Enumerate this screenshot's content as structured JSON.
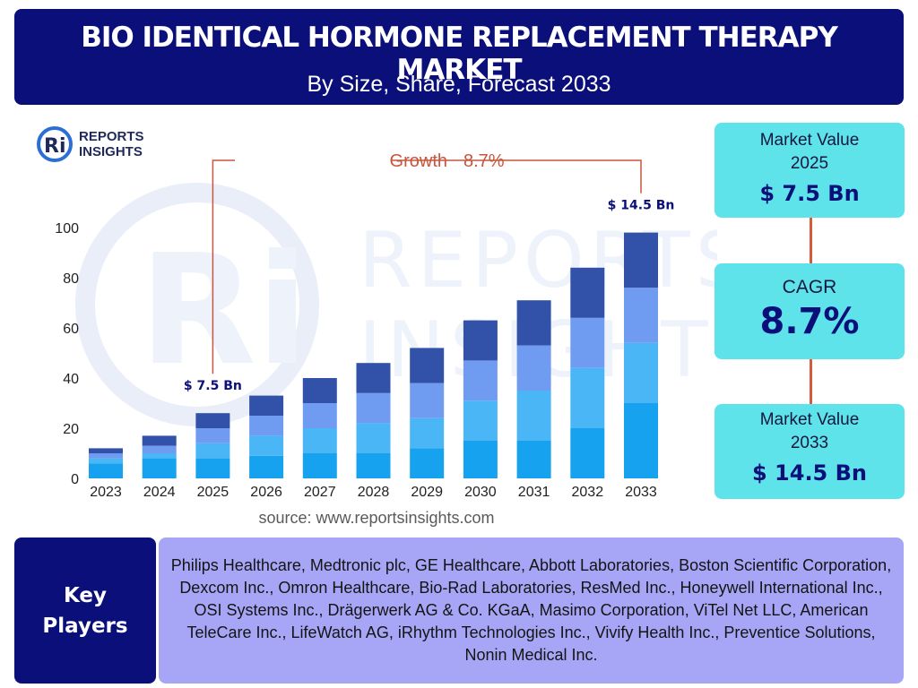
{
  "header": {
    "title": "BIO IDENTICAL HORMONE REPLACEMENT THERAPY MARKET",
    "subtitle": "By Size, Share, Forecast 2033"
  },
  "logo": {
    "line1": "REPORTS",
    "line2": "INSIGHTS"
  },
  "watermark": {
    "line1": "REPORTS",
    "line2": "INSIGHTS"
  },
  "chart_data": {
    "type": "bar",
    "stacked": true,
    "categories": [
      "2023",
      "2024",
      "2025",
      "2026",
      "2027",
      "2028",
      "2029",
      "2030",
      "2031",
      "2032",
      "2033"
    ],
    "series": [
      {
        "values": [
          6,
          8,
          8,
          9,
          10,
          10,
          12,
          15,
          15,
          20,
          30
        ]
      },
      {
        "values": [
          2,
          2,
          6,
          8,
          10,
          12,
          12,
          16,
          20,
          24,
          24
        ]
      },
      {
        "values": [
          2,
          3,
          6,
          8,
          10,
          12,
          14,
          16,
          18,
          20,
          22
        ]
      },
      {
        "values": [
          2,
          4,
          6,
          8,
          10,
          12,
          14,
          16,
          18,
          20,
          22
        ]
      }
    ],
    "ylim": [
      0,
      100
    ],
    "yticks": [
      0,
      20,
      40,
      60,
      80,
      100
    ],
    "growth_label": "Growth",
    "growth_value": "8.7%",
    "annotations": [
      {
        "category": "2025",
        "label": "$ 7.5 Bn"
      },
      {
        "category": "2033",
        "label": "$ 14.5 Bn"
      }
    ],
    "colors": [
      "#16a2ef",
      "#4ab6f6",
      "#6f9cf1",
      "#3152a8"
    ],
    "growth_color": "#c8553d",
    "grid": false
  },
  "source": "source: www.reportsinsights.com",
  "stats": {
    "value_2025_label": "Market Value",
    "value_2025_year": "2025",
    "value_2025": "$ 7.5 Bn",
    "cagr_label": "CAGR",
    "cagr_value": "8.7%",
    "value_2033_label": "Market Value",
    "value_2033_year": "2033",
    "value_2033": "$ 14.5 Bn"
  },
  "players": {
    "label_line1": "Key",
    "label_line2": "Players",
    "list": "Philips Healthcare, Medtronic plc, GE Healthcare, Abbott Laboratories, Boston Scientific Corporation, Dexcom Inc., Omron Healthcare, Bio-Rad Laboratories, ResMed Inc., Honeywell International Inc., OSI Systems Inc., Drägerwerk AG & Co. KGaA, Masimo Corporation, ViTel Net LLC, American TeleCare Inc., LifeWatch AG, iRhythm Technologies Inc., Vivify Health Inc., Preventice Solutions, Nonin Medical Inc."
  },
  "theme": {
    "navy": "#0b0f7a",
    "cyan": "#5fe3ea",
    "lavender": "#a7a6f6",
    "connector": "#d65a3c"
  }
}
